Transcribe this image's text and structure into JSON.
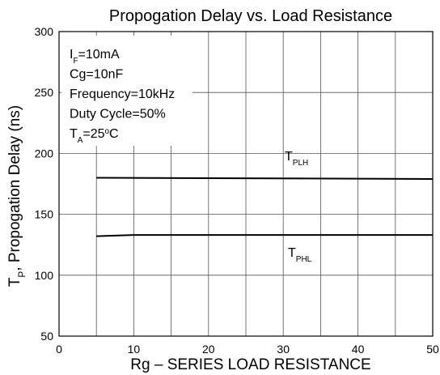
{
  "chart_data": {
    "type": "line",
    "title": "Propogation Delay vs. Load Resistance",
    "xlabel": "Rg –  SERIES LOAD RESISTANCE",
    "ylabel": [
      {
        "t": "T"
      },
      {
        "t": "P",
        "s": "sub"
      },
      {
        "t": ", Propogation Delay (ns)"
      }
    ],
    "xlim": [
      0,
      50
    ],
    "ylim": [
      50,
      300
    ],
    "xticks": [
      0,
      10,
      20,
      30,
      40,
      50
    ],
    "minor_xticks": [
      5,
      15,
      25,
      35,
      45
    ],
    "yticks": [
      50,
      100,
      150,
      200,
      250,
      300
    ],
    "grid": true,
    "annotations": [
      [
        {
          "t": "I"
        },
        {
          "t": "F",
          "s": "sub"
        },
        {
          "t": "=10mA"
        }
      ],
      [
        {
          "t": "Cg=10nF"
        }
      ],
      [
        {
          "t": "Frequency=10kHz"
        }
      ],
      [
        {
          "t": "Duty Cycle=50%"
        }
      ],
      [
        {
          "t": "T"
        },
        {
          "t": "A",
          "s": "sub"
        },
        {
          "t": "=25"
        },
        {
          "t": "o",
          "s": "sup"
        },
        {
          "t": "C"
        }
      ]
    ],
    "series": [
      {
        "name": "T",
        "name_sub": "PLH",
        "color": "#000000",
        "x": [
          5,
          50
        ],
        "values": [
          180,
          179
        ]
      },
      {
        "name": "T",
        "name_sub": "PHL",
        "color": "#000000",
        "x": [
          5,
          10,
          50
        ],
        "values": [
          132,
          133,
          133
        ]
      }
    ]
  }
}
